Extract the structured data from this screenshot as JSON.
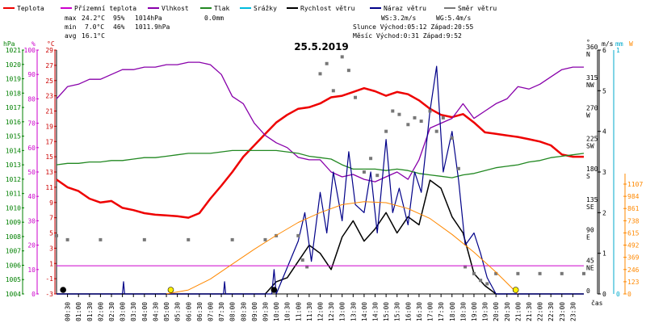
{
  "chart_data": {
    "type": "line",
    "title": "25.5.2019",
    "x_axis": {
      "label": "čas",
      "ticks": [
        "00:30",
        "01:00",
        "01:30",
        "02:00",
        "02:30",
        "03:00",
        "03:30",
        "04:00",
        "04:30",
        "05:00",
        "05:30",
        "06:00",
        "06:30",
        "07:00",
        "07:30",
        "08:00",
        "08:30",
        "09:00",
        "09:30",
        "10:00",
        "10:30",
        "11:00",
        "11:30",
        "12:00",
        "12:30",
        "13:00",
        "13:30",
        "14:00",
        "14:30",
        "15:00",
        "15:30",
        "16:00",
        "16:30",
        "17:00",
        "17:30",
        "18:00",
        "18:30",
        "19:00",
        "19:30",
        "20:00",
        "20:30",
        "21:00",
        "21:30",
        "22:00",
        "22:30",
        "23:00",
        "23:30"
      ]
    },
    "axes": {
      "pressure": {
        "unit": "hPa",
        "min": 1004,
        "max": 1021,
        "ticks": [
          "1004",
          "1005",
          "1006",
          "1007",
          "1008",
          "1009",
          "1010",
          "1011",
          "1012",
          "1013",
          "1014",
          "1015",
          "1016",
          "1017",
          "1018",
          "1019",
          "1020",
          "1021"
        ],
        "color": "#008000"
      },
      "humidity": {
        "unit": "%",
        "min": 0,
        "max": 100,
        "ticks": [
          "0",
          "10",
          "20",
          "30",
          "40",
          "50",
          "60",
          "70",
          "80",
          "90",
          "100"
        ],
        "color": "#cc00cc"
      },
      "temperature": {
        "unit": "°C",
        "min": -3,
        "max": 29,
        "ticks": [
          "-3",
          "-1",
          "1",
          "3",
          "5",
          "7",
          "9",
          "11",
          "13",
          "15",
          "17",
          "19",
          "21",
          "23",
          "25",
          "27",
          "29"
        ],
        "color": "#cc0000"
      },
      "direction": {
        "unit": "°",
        "min": 0,
        "max": 360,
        "ticks": [
          {
            "deg": "0",
            "dir": ""
          },
          {
            "deg": "45",
            "dir": "NE"
          },
          {
            "deg": "90",
            "dir": "E"
          },
          {
            "deg": "135",
            "dir": "SE"
          },
          {
            "deg": "180",
            "dir": "S"
          },
          {
            "deg": "225",
            "dir": "SW"
          },
          {
            "deg": "270",
            "dir": "W"
          },
          {
            "deg": "315",
            "dir": "NW"
          },
          {
            "deg": "360",
            "dir": "N"
          }
        ],
        "color": "#000000"
      },
      "wind": {
        "unit": "m/s",
        "min": 0,
        "max": 6,
        "ticks": [
          "0",
          "1",
          "2",
          "3",
          "4",
          "5",
          "6"
        ],
        "color": "#000000"
      },
      "precip": {
        "unit": "mm",
        "ticks": [
          "0",
          "1"
        ],
        "color": "#00aacc"
      },
      "solar": {
        "unit": "W",
        "min": 0,
        "max": 1107,
        "ticks": [
          "0",
          "123",
          "246",
          "369",
          "492",
          "615",
          "738",
          "861",
          "984",
          "1107"
        ],
        "color": "#ff8800"
      }
    },
    "legend": [
      {
        "name": "Teplota",
        "color": "#ee0000"
      },
      {
        "name": "Přízemní teplota",
        "color": "#cc00cc"
      },
      {
        "name": "Vlhkost",
        "color": "#8800aa"
      },
      {
        "name": "Tlak",
        "color": "#228822"
      },
      {
        "name": "Srážky",
        "color": "#00bbdd"
      },
      {
        "name": "Rychlost větru",
        "color": "#000000"
      },
      {
        "name": "Náraz větru",
        "color": "#000088"
      },
      {
        "name": "Směr větru",
        "color": "#777777"
      }
    ],
    "stats": {
      "max_label": "max",
      "max_temp": "24.2°C",
      "max_hum": "95%",
      "max_press": "1014hPa",
      "max_rain": "0.0mm",
      "min_label": "min",
      "min_temp": "7.0°C",
      "min_hum": "46%",
      "min_press": "1011.9hPa",
      "avg_label": "avg",
      "avg_temp": "16.1°C",
      "ws": "WS:3.2m/s",
      "wg": "WG:5.4m/s",
      "sun": "Slunce Východ:05:12  Západ:20:55",
      "moon": "Měsíc  Východ:0:31   Západ:9:52"
    },
    "series": [
      {
        "name": "Teplota",
        "axis": "temperature",
        "hours": [
          0,
          0.5,
          1,
          1.5,
          2,
          2.5,
          3,
          3.5,
          4,
          4.5,
          5,
          5.5,
          6,
          6.5,
          7,
          7.5,
          8,
          8.5,
          9,
          9.5,
          10,
          10.5,
          11,
          11.5,
          12,
          12.5,
          13,
          13.5,
          14,
          14.5,
          15,
          15.5,
          16,
          16.5,
          17,
          17.5,
          18,
          18.5,
          19,
          19.5,
          20,
          20.5,
          21,
          21.5,
          22,
          22.5,
          23,
          23.5,
          24
        ],
        "values": [
          12,
          11,
          10.5,
          9.5,
          9,
          9.2,
          8.3,
          8,
          7.6,
          7.4,
          7.3,
          7.2,
          7.0,
          7.6,
          9.5,
          11.2,
          13,
          15,
          16.5,
          18,
          19.5,
          20.5,
          21.3,
          21.5,
          22,
          22.8,
          23,
          23.5,
          24,
          23.6,
          23,
          23.5,
          23.2,
          22.4,
          21.3,
          20.5,
          20.2,
          20.6,
          19.5,
          18.2,
          18,
          17.8,
          17.6,
          17.3,
          17,
          16.5,
          15.3,
          15,
          15
        ]
      },
      {
        "name": "Vlhkost",
        "axis": "humidity",
        "hours": [
          0,
          0.5,
          1,
          1.5,
          2,
          2.5,
          3,
          3.5,
          4,
          4.5,
          5,
          5.5,
          6,
          6.5,
          7,
          7.5,
          8,
          8.5,
          9,
          9.5,
          10,
          10.5,
          11,
          11.5,
          12,
          12.5,
          13,
          13.5,
          14,
          14.5,
          15,
          15.5,
          16,
          16.5,
          17,
          17.5,
          18,
          18.5,
          19,
          19.5,
          20,
          20.5,
          21,
          21.5,
          22,
          22.5,
          23,
          23.5,
          24
        ],
        "values": [
          80,
          85,
          86,
          88,
          88,
          90,
          92,
          92,
          93,
          93,
          94,
          94,
          95,
          95,
          94,
          90,
          81,
          78,
          70,
          65,
          62,
          60,
          56,
          55,
          55,
          50,
          48,
          49,
          47,
          46,
          48,
          50,
          47,
          55,
          68,
          70,
          72,
          78,
          72,
          75,
          78,
          80,
          85,
          84,
          86,
          89,
          92,
          93,
          93
        ]
      },
      {
        "name": "Tlak",
        "axis": "pressure",
        "hours": [
          0,
          0.5,
          1,
          1.5,
          2,
          2.5,
          3,
          3.5,
          4,
          4.5,
          5,
          5.5,
          6,
          6.5,
          7,
          7.5,
          8,
          8.5,
          9,
          9.5,
          10,
          10.5,
          11,
          11.5,
          12,
          12.5,
          13,
          13.5,
          14,
          14.5,
          15,
          15.5,
          16,
          16.5,
          17,
          17.5,
          18,
          18.5,
          19,
          19.5,
          20,
          20.5,
          21,
          21.5,
          22,
          22.5,
          23,
          23.5,
          24
        ],
        "values": [
          1013,
          1013.1,
          1013.1,
          1013.2,
          1013.2,
          1013.3,
          1013.3,
          1013.4,
          1013.5,
          1013.5,
          1013.6,
          1013.7,
          1013.8,
          1013.8,
          1013.8,
          1013.9,
          1014,
          1014,
          1014,
          1014,
          1014,
          1013.9,
          1013.8,
          1013.6,
          1013.5,
          1013.4,
          1013,
          1012.7,
          1012.7,
          1012.7,
          1012.6,
          1012.7,
          1012.6,
          1012.4,
          1012.3,
          1012.2,
          1012.1,
          1012.3,
          1012.4,
          1012.6,
          1012.8,
          1012.9,
          1013,
          1013.2,
          1013.3,
          1013.5,
          1013.6,
          1013.7,
          1013.8
        ]
      },
      {
        "name": "Rychlost větru",
        "axis": "wind",
        "hours": [
          0,
          9.5,
          10,
          10.5,
          11,
          11.5,
          12,
          12.5,
          13,
          13.5,
          14,
          14.5,
          15,
          15.5,
          16,
          16.5,
          17,
          17.5,
          18,
          18.5,
          19,
          19.5,
          20,
          24
        ],
        "values": [
          0,
          0,
          0.3,
          0.4,
          0.8,
          1.2,
          1,
          0.6,
          1.4,
          1.8,
          1.3,
          1.6,
          2,
          1.5,
          1.9,
          1.7,
          2.8,
          2.6,
          1.9,
          1.5,
          0.5,
          0.2,
          0,
          0
        ]
      },
      {
        "name": "Náraz větru",
        "axis": "wind",
        "hours": [
          0,
          3,
          3.05,
          3.1,
          7.6,
          7.65,
          7.7,
          9.8,
          9.9,
          10,
          11,
          11.3,
          11.6,
          12,
          12.3,
          12.6,
          13,
          13.3,
          13.6,
          14,
          14.3,
          14.6,
          15,
          15.3,
          15.6,
          16,
          16.3,
          16.6,
          17,
          17.3,
          17.6,
          18,
          18.3,
          18.6,
          19,
          19.3,
          19.6,
          20,
          24
        ],
        "values": [
          0,
          0,
          0.3,
          0,
          0,
          0.3,
          0,
          0,
          0.6,
          0,
          1.3,
          2,
          0.8,
          2.5,
          1.5,
          3,
          1.8,
          3.5,
          2.2,
          2,
          3,
          1.5,
          3.8,
          2,
          2.6,
          1.7,
          3,
          2.5,
          4.5,
          5.6,
          3,
          4,
          2.8,
          1.2,
          1.5,
          1,
          0.4,
          0,
          0
        ]
      },
      {
        "name": "Směr větru",
        "axis": "direction",
        "hours": [
          0,
          0.5,
          2,
          4,
          6,
          8,
          9.5,
          10,
          11,
          11.2,
          11.4,
          12,
          12.3,
          12.6,
          13,
          13.3,
          13.6,
          14,
          14.3,
          14.6,
          15,
          15.3,
          15.6,
          16,
          16.3,
          16.6,
          17,
          17.3,
          17.6,
          18,
          18.3,
          18.6,
          19,
          19.3,
          19.6,
          20,
          21,
          22,
          23,
          24
        ],
        "values": [
          86,
          80,
          80,
          80,
          80,
          80,
          80,
          86,
          86,
          50,
          40,
          325,
          340,
          300,
          350,
          330,
          290,
          180,
          200,
          175,
          240,
          270,
          265,
          250,
          260,
          255,
          270,
          240,
          260,
          230,
          185,
          40,
          30,
          20,
          15,
          30,
          30,
          30,
          30,
          30
        ]
      },
      {
        "name": "Přízemní teplota",
        "axis": "temperature",
        "hours": [
          0,
          24
        ],
        "values": [
          0.7,
          0.7
        ]
      },
      {
        "name": "Solar",
        "axis": "solar",
        "hours": [
          5,
          6,
          7,
          8,
          9,
          10,
          11,
          12,
          13,
          14,
          15,
          16,
          17,
          18,
          19,
          20,
          21
        ],
        "values": [
          0,
          40,
          150,
          300,
          450,
          590,
          720,
          820,
          900,
          930,
          920,
          860,
          760,
          600,
          420,
          220,
          0
        ]
      }
    ]
  }
}
